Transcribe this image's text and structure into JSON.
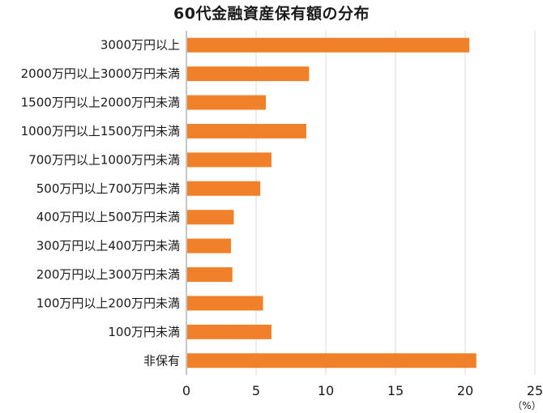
{
  "chart_data": {
    "type": "bar",
    "orientation": "horizontal",
    "title": "60代金融資産保有額の分布",
    "categories": [
      "3000万円以上",
      "2000万円以上3000万円未満",
      "1500万円以上2000万円未満",
      "1000万円以上1500万円未満",
      "700万円以上1000万円未満",
      "500万円以上700万円未満",
      "400万円以上500万円未満",
      "300万円以上400万円未満",
      "200万円以上300万円未満",
      "100万円以上200万円未満",
      "100万円未満",
      "非保有"
    ],
    "values": [
      20.3,
      8.8,
      5.7,
      8.6,
      6.1,
      5.3,
      3.4,
      3.2,
      3.3,
      5.5,
      6.1,
      20.8
    ],
    "xlim": [
      0,
      25
    ],
    "xticks": [
      0,
      5,
      10,
      15,
      20,
      25
    ],
    "unit": "（%）",
    "bar_color": "#F0812A",
    "grid_color": "#d9d9d9",
    "grid": true
  }
}
